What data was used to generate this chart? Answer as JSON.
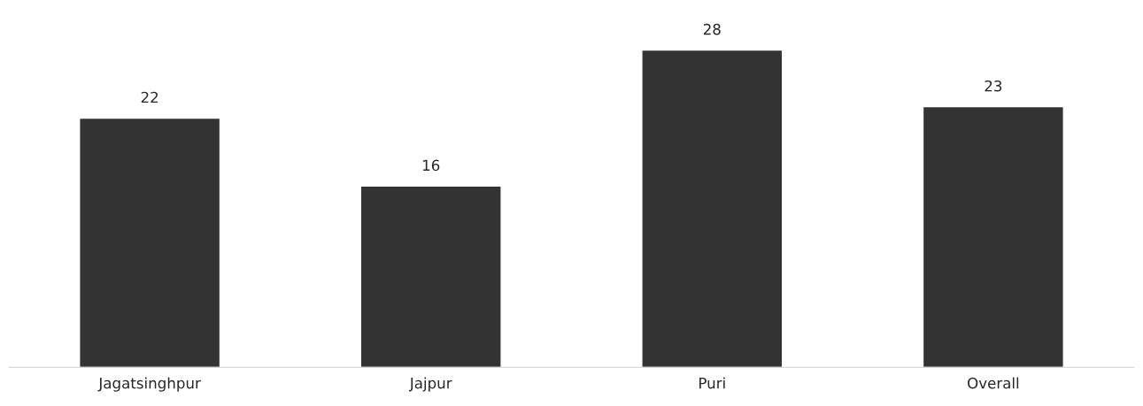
{
  "chart_data": {
    "type": "bar",
    "categories": [
      "Jagatsinghpur",
      "Jajpur",
      "Puri",
      "Overall"
    ],
    "values": [
      22,
      16,
      28,
      23
    ],
    "color": "#333333",
    "data_labels": true,
    "grid": false,
    "legend": false
  }
}
